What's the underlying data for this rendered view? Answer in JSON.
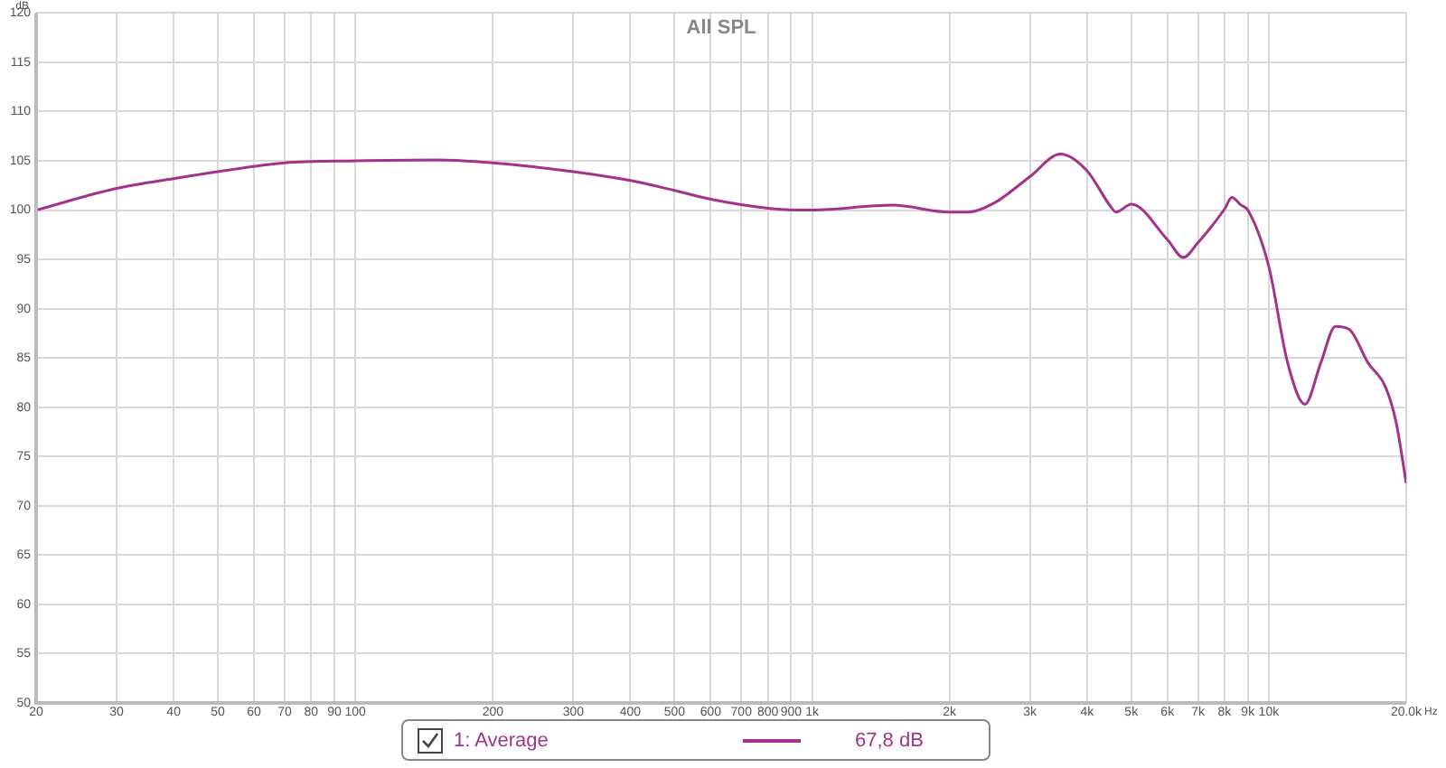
{
  "chart_data": {
    "type": "line",
    "title": "All SPL",
    "xlabel": "Hz",
    "ylabel": "dB",
    "log": "x",
    "x": [
      20,
      30,
      40,
      50,
      70,
      100,
      150,
      200,
      300,
      400,
      500,
      600,
      800,
      1000,
      1500,
      2000,
      2200,
      2500,
      3000,
      3500,
      4000,
      4500,
      4630,
      5000,
      6000,
      6500,
      7000,
      8000,
      8300,
      8700,
      9000,
      10000,
      11000,
      12000,
      13000,
      14000,
      15000,
      16500,
      18000,
      19000,
      20000
    ],
    "series": [
      {
        "name": "1: Average",
        "color": "#a3338a",
        "values": [
          100,
          102.2,
          103.2,
          103.9,
          104.8,
          105.0,
          105.1,
          104.8,
          103.9,
          103.0,
          102.0,
          101.1,
          100.2,
          100.0,
          100.5,
          99.8,
          99.8,
          100.7,
          103.4,
          105.7,
          104.0,
          100.4,
          99.8,
          100.6,
          97.0,
          95.2,
          96.7,
          100.1,
          101.3,
          100.5,
          100.0,
          94.3,
          84.5,
          80.3,
          84.5,
          88.2,
          87.9,
          84.5,
          82.1,
          78.5,
          72.3
        ]
      }
    ],
    "annotations": [
      "67,8 dB"
    ],
    "xlim": [
      20,
      20000
    ],
    "xticks": [
      20,
      30,
      40,
      50,
      60,
      70,
      80,
      90,
      100,
      200,
      300,
      400,
      500,
      600,
      700,
      800,
      900,
      {
        "value": 1000,
        "label": "1k"
      },
      {
        "value": 2000,
        "label": "2k"
      },
      {
        "value": 3000,
        "label": "3k"
      },
      {
        "value": 4000,
        "label": "4k"
      },
      {
        "value": 5000,
        "label": "5k"
      },
      {
        "value": 6000,
        "label": "6k"
      },
      {
        "value": 7000,
        "label": "7k"
      },
      {
        "value": 8000,
        "label": "8k"
      },
      {
        "value": 9000,
        "label": "9k"
      },
      {
        "value": 10000,
        "label": "10k"
      },
      {
        "value": 20000,
        "label": "20.0k"
      }
    ],
    "ylim": [
      50,
      120
    ],
    "yticks": [
      50,
      55,
      60,
      65,
      70,
      75,
      80,
      85,
      90,
      95,
      100,
      105,
      110,
      115,
      120
    ],
    "grid": true,
    "legend": "bottom",
    "marker": "none",
    "line_style": "solid"
  }
}
